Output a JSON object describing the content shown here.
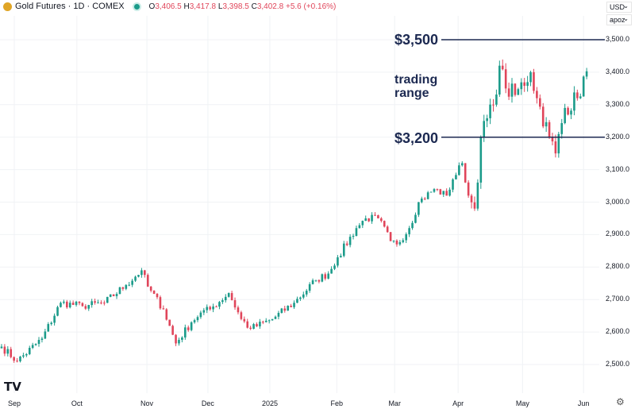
{
  "header": {
    "symbol": "Gold Futures · 1D · COMEX",
    "o_label": "O",
    "o": "3,406.5",
    "h_label": "H",
    "h": "3,417.8",
    "l_label": "L",
    "l": "3,398.5",
    "c_label": "C",
    "c": "3,402.8",
    "change": "+5.6 (+0.16%)"
  },
  "controls": {
    "currency": "USD",
    "scale": "apoz"
  },
  "colors": {
    "up": "#1b9b8a",
    "down": "#e0455a",
    "annotation": "#1c2951"
  },
  "annotations": {
    "top_level": "$3,500",
    "bottom_level": "$3,200",
    "range_label_1": "trading",
    "range_label_2": "range"
  },
  "chart_data": {
    "type": "candlestick",
    "title": "Gold Futures · 1D · COMEX",
    "ylim": [
      2450,
      3560
    ],
    "yticks": [
      "3,500.0",
      "3,400.0",
      "3,300.0",
      "3,200.0",
      "3,100.0",
      "3,000.0",
      "2,900.0",
      "2,800.0",
      "2,700.0",
      "2,600.0",
      "2,500.0"
    ],
    "ytick_values": [
      3500,
      3400,
      3300,
      3200,
      3100,
      3000,
      2900,
      2800,
      2700,
      2600,
      2500
    ],
    "xticks": [
      "Sep",
      "Oct",
      "Nov",
      "Dec",
      "2025",
      "Feb",
      "Mar",
      "Apr",
      "May",
      "Jun"
    ],
    "xtick_day_index": [
      4.6,
      24.7,
      47.2,
      66.8,
      86.7,
      108.2,
      126.8,
      147.2,
      167.9,
      187.5
    ],
    "total_days": 190,
    "horizontal_lines": [
      3500,
      3200
    ],
    "close_waypoints": [
      [
        0,
        2555
      ],
      [
        5,
        2510
      ],
      [
        13,
        2580
      ],
      [
        19,
        2690
      ],
      [
        26,
        2680
      ],
      [
        33,
        2690
      ],
      [
        40,
        2745
      ],
      [
        45,
        2790
      ],
      [
        47,
        2740
      ],
      [
        52,
        2670
      ],
      [
        56,
        2565
      ],
      [
        61,
        2630
      ],
      [
        64,
        2660
      ],
      [
        67,
        2670
      ],
      [
        73,
        2720
      ],
      [
        77,
        2640
      ],
      [
        80,
        2610
      ],
      [
        87,
        2640
      ],
      [
        94,
        2690
      ],
      [
        101,
        2760
      ],
      [
        105,
        2780
      ],
      [
        108,
        2830
      ],
      [
        114,
        2920
      ],
      [
        117,
        2950
      ],
      [
        121,
        2950
      ],
      [
        125,
        2880
      ],
      [
        127,
        2870
      ],
      [
        131,
        2920
      ],
      [
        134,
        3000
      ],
      [
        139,
        3040
      ],
      [
        143,
        3020
      ],
      [
        145,
        3070
      ],
      [
        148,
        3120
      ],
      [
        150,
        3020
      ],
      [
        152,
        2980
      ],
      [
        154,
        3200
      ],
      [
        158,
        3300
      ],
      [
        160,
        3420
      ],
      [
        162,
        3350
      ],
      [
        165,
        3330
      ],
      [
        170,
        3400
      ],
      [
        172,
        3320
      ],
      [
        176,
        3200
      ],
      [
        178,
        3150
      ],
      [
        181,
        3290
      ],
      [
        185,
        3320
      ],
      [
        188,
        3402.8
      ]
    ]
  }
}
